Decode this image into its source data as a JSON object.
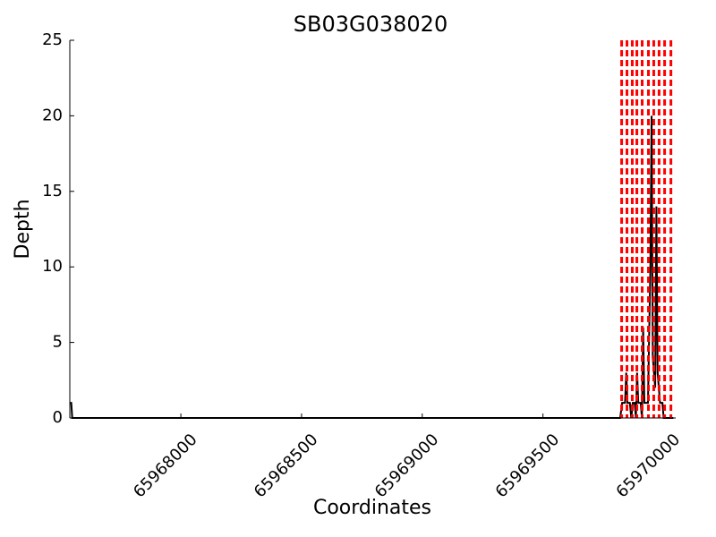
{
  "chart_data": {
    "type": "line",
    "title": "SB03G038020",
    "xlabel": "Coordinates",
    "ylabel": "Depth",
    "x": [
      65967542,
      65967546,
      65967550,
      65969820,
      65969828,
      65969840,
      65969845,
      65969850,
      65969860,
      65969866,
      65969872,
      65969880,
      65969885,
      65969890,
      65969895,
      65969905,
      65969910,
      65969915,
      65969920,
      65969935,
      65969945,
      65969950,
      65969955,
      65969965,
      65969970,
      65969975,
      65969985,
      65969995,
      65970000,
      65970040
    ],
    "series": [
      {
        "color": "#000000",
        "values": [
          1,
          1,
          0,
          0,
          1,
          1,
          3,
          1,
          1,
          0,
          1,
          1,
          0,
          3,
          1,
          1,
          0,
          6,
          1,
          1,
          10,
          20,
          4,
          2,
          14,
          3,
          1,
          1,
          0,
          0
        ]
      }
    ],
    "vlines": {
      "color": "#ff0000",
      "x": [
        65969826,
        65969848,
        65969870,
        65969889,
        65969911,
        65969937,
        65969959,
        65969981,
        65970004,
        65970030
      ]
    },
    "xlim": [
      65967540,
      65970050
    ],
    "ylim": [
      0,
      25
    ],
    "xticks": [
      65968000,
      65968500,
      65969000,
      65969500,
      65970000
    ],
    "yticks": [
      0,
      5,
      10,
      15,
      20,
      25
    ]
  }
}
